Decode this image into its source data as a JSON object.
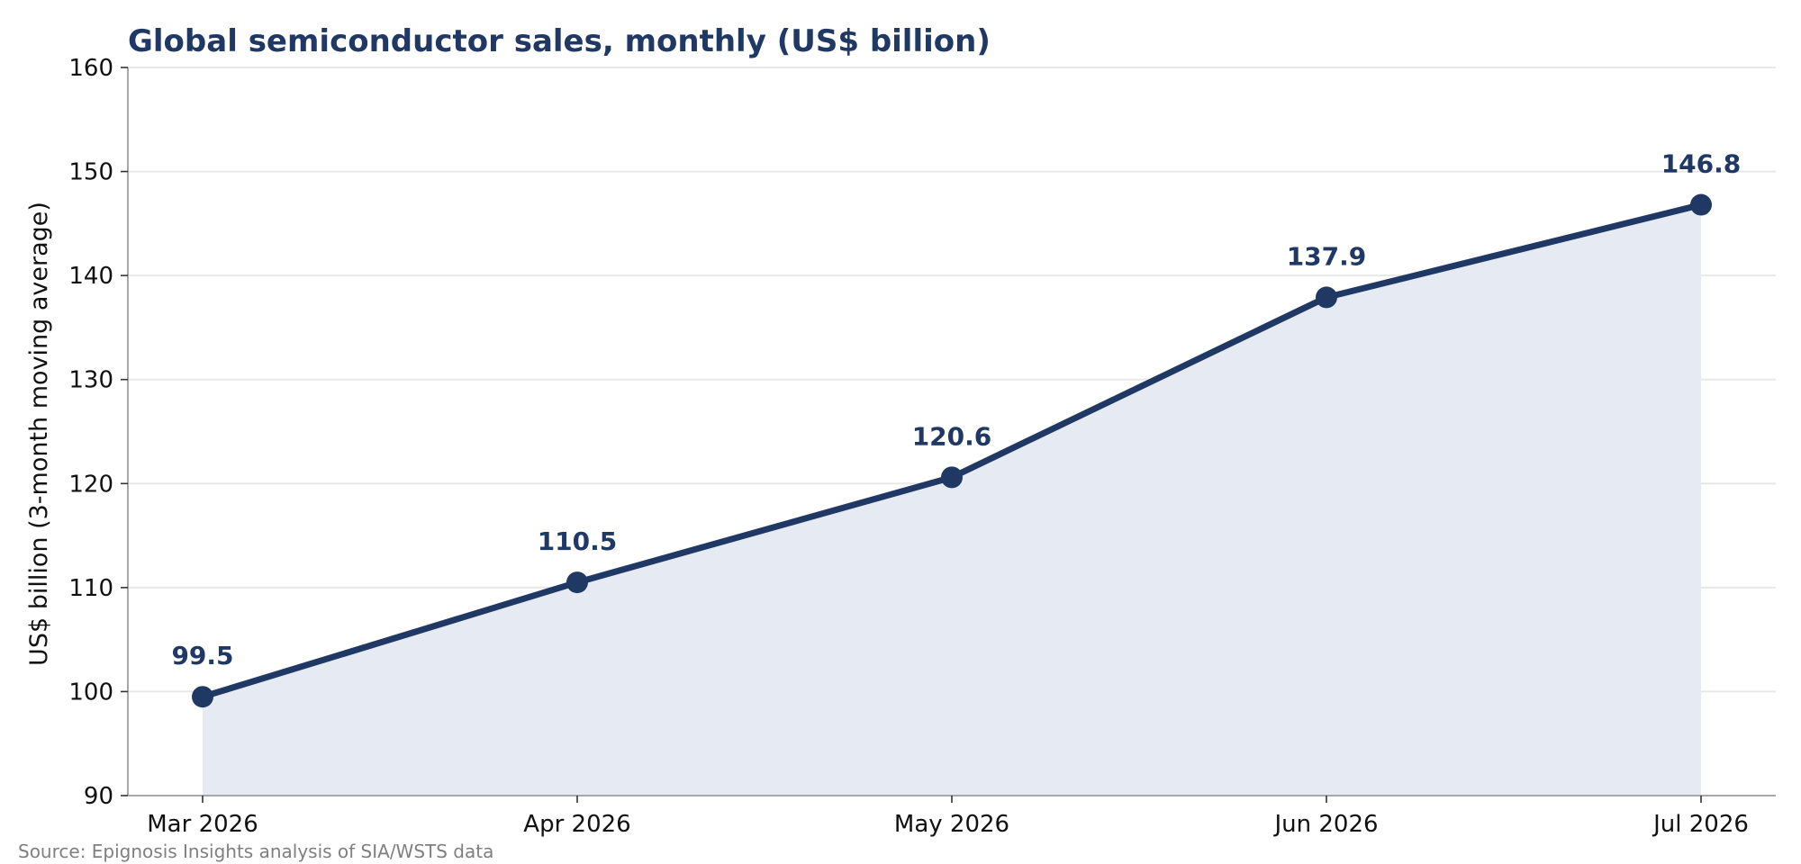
{
  "chart_data": {
    "type": "line",
    "title": "Global semiconductor sales, monthly (US$ billion)",
    "xlabel": "",
    "ylabel": "US$ billion (3-month moving average)",
    "categories": [
      "Mar 2026",
      "Apr 2026",
      "May 2026",
      "Jun 2026",
      "Jul 2026"
    ],
    "series": [
      {
        "values": [
          99.5,
          110.5,
          120.6,
          137.9,
          146.8
        ],
        "labels": [
          "99.5",
          "110.5",
          "120.6",
          "137.9",
          "146.8"
        ]
      }
    ],
    "ylim": [
      90,
      160
    ],
    "yticks": [
      90,
      100,
      110,
      120,
      130,
      140,
      150,
      160
    ],
    "grid": true,
    "area_fill": true,
    "legend": "none"
  },
  "source_note": "Source: Epignosis Insights analysis of SIA/WSTS data",
  "colors": {
    "line": "#1f3864",
    "area": "#e6eaf2",
    "title": "#1f3864",
    "grid": "#e8e8e8",
    "axis": "#a8a8a8",
    "source": "#7f7f7f"
  }
}
